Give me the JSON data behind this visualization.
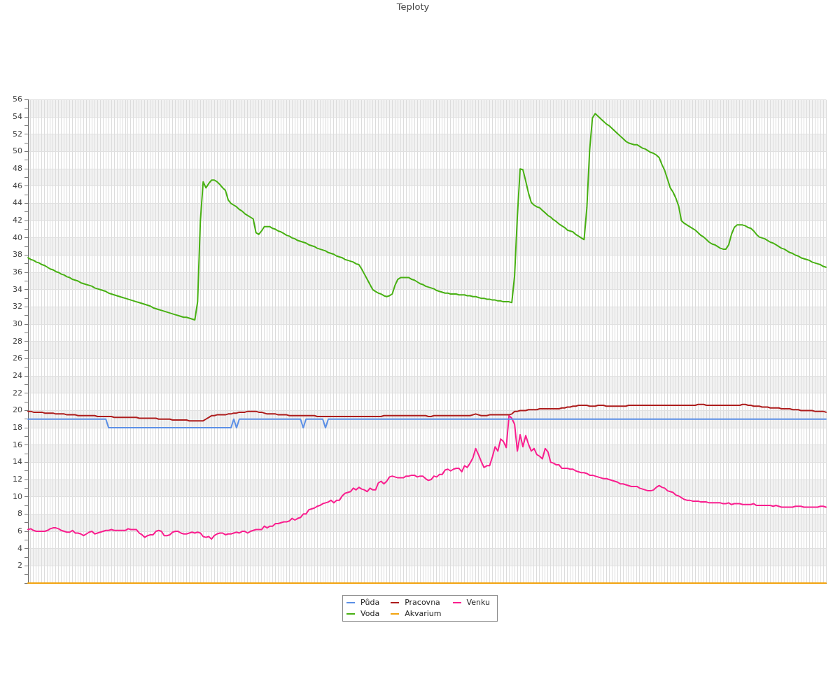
{
  "chart_data": {
    "type": "line",
    "title": "Teploty",
    "categories": [
      null,
      null,
      null,
      null,
      null,
      null,
      null,
      null,
      null,
      null,
      null,
      null,
      null,
      null,
      null,
      null,
      null,
      null,
      null,
      null,
      null,
      null,
      null,
      null,
      null,
      null,
      null,
      null,
      null,
      null,
      null,
      null,
      null,
      null,
      null,
      null,
      null,
      null,
      null,
      null,
      null,
      null,
      null,
      null,
      null,
      null,
      null,
      null,
      null,
      null,
      null,
      null,
      null,
      null,
      null,
      null,
      null,
      null,
      null,
      null,
      null,
      null,
      null,
      null,
      null,
      null,
      null,
      null,
      null,
      null,
      null,
      null,
      null,
      null,
      null,
      null,
      null,
      null,
      null,
      null,
      null,
      null,
      null,
      null,
      null,
      null,
      null,
      null,
      null,
      null,
      null,
      null,
      null,
      null,
      null,
      null,
      null,
      null,
      null,
      null,
      null,
      null,
      null,
      null,
      null,
      null,
      null,
      null,
      null,
      null,
      null,
      null,
      null,
      null,
      null,
      null,
      null,
      null,
      null,
      null,
      null,
      null,
      null,
      null,
      null,
      null,
      null,
      null,
      null,
      null,
      null,
      null,
      null,
      null,
      null,
      null,
      null,
      null,
      null,
      null,
      null,
      null,
      null,
      null,
      null,
      null,
      null,
      null,
      null,
      null,
      null,
      null,
      null,
      null,
      null,
      null,
      null,
      null,
      null,
      null,
      null,
      null,
      null,
      null,
      null,
      null,
      null,
      null,
      null,
      null,
      null,
      null,
      null,
      null,
      null,
      null,
      null,
      null,
      null,
      null,
      null,
      null,
      null,
      null,
      null,
      null,
      null,
      null,
      null,
      null,
      null,
      null,
      null,
      null,
      null,
      null,
      null,
      null,
      null,
      null,
      null,
      null,
      null,
      null,
      null,
      null,
      null,
      null,
      null,
      null,
      null,
      null,
      null,
      null,
      null,
      null,
      null,
      null,
      null,
      null,
      null,
      null,
      null,
      null,
      null,
      null,
      null,
      null,
      null,
      null,
      null,
      null,
      null,
      null,
      null,
      null,
      null,
      null,
      null,
      null,
      null,
      null,
      null,
      null,
      null,
      null,
      null,
      null,
      null,
      null,
      null,
      null,
      null,
      null,
      null,
      null,
      null,
      null,
      null,
      null,
      null,
      null,
      null,
      null,
      null,
      null,
      null,
      null,
      null,
      null,
      null,
      null,
      null,
      null,
      null,
      null,
      null,
      null,
      null,
      null,
      null,
      null,
      null,
      null,
      null,
      null,
      null,
      null
    ],
    "series": [
      {
        "name": "Půda",
        "color": "#5b8fe6",
        "values": [
          19,
          19,
          19,
          19,
          19,
          19,
          19,
          19,
          19,
          19,
          19,
          19,
          19,
          19,
          19,
          19,
          19,
          19,
          19,
          19,
          19,
          19,
          19,
          19,
          19,
          19,
          19,
          19,
          19,
          18,
          18,
          18,
          18,
          18,
          18,
          18,
          18,
          18,
          18,
          18,
          18,
          18,
          18,
          18,
          18,
          18,
          18,
          18,
          18,
          18,
          18,
          18,
          18,
          18,
          18,
          18,
          18,
          18,
          18,
          18,
          18,
          18,
          18,
          18,
          18,
          18,
          18,
          18,
          18,
          18,
          18,
          18,
          18,
          18,
          19,
          18,
          19,
          19,
          19,
          19,
          19,
          19,
          19,
          19,
          19,
          19,
          19,
          19,
          19,
          19,
          19,
          19,
          19,
          19,
          19,
          19,
          19,
          19,
          19,
          18,
          19,
          19,
          19,
          19,
          19,
          19,
          19,
          18,
          19,
          19,
          19,
          19,
          19,
          19,
          19,
          19,
          19,
          19,
          19,
          19,
          19,
          19,
          19,
          19,
          19,
          19,
          19,
          19,
          19,
          19,
          19,
          19,
          19,
          19,
          19,
          19,
          19,
          19,
          19,
          19,
          19,
          19,
          19,
          19,
          19,
          19,
          19,
          19,
          19,
          19,
          19,
          19,
          19,
          19,
          19,
          19,
          19,
          19,
          19,
          19,
          19,
          19,
          19,
          19,
          19,
          19,
          19,
          19,
          19,
          19,
          19,
          19,
          19,
          19,
          19,
          19,
          19,
          19,
          19,
          19,
          19,
          19,
          19,
          19,
          19,
          19,
          19,
          19,
          19,
          19,
          19,
          19,
          19,
          19,
          19,
          19,
          19,
          19,
          19,
          19,
          19,
          19,
          19,
          19,
          19,
          19,
          19,
          19,
          19,
          19,
          19,
          19,
          19,
          19,
          19,
          19,
          19,
          19,
          19,
          19,
          19,
          19,
          19,
          19,
          19,
          19,
          19,
          19,
          19,
          19,
          19,
          19,
          19,
          19,
          19,
          19,
          19,
          19,
          19,
          19,
          19,
          19,
          19,
          19,
          19,
          19,
          19,
          19,
          19,
          19,
          19,
          19,
          19,
          19,
          19,
          19,
          19,
          19,
          19,
          19,
          19,
          19,
          19,
          19,
          19,
          19,
          19,
          19,
          19,
          19,
          19,
          19,
          19,
          19,
          19,
          19,
          19,
          19,
          19,
          19,
          19,
          19,
          19,
          19,
          19,
          19,
          19,
          19
        ]
      },
      {
        "name": "Voda",
        "color": "#47b012",
        "values": [
          37.7,
          37.5,
          37.4,
          37.2,
          37.1,
          36.9,
          36.8,
          36.6,
          36.4,
          36.3,
          36.1,
          36.0,
          35.8,
          35.7,
          35.5,
          35.4,
          35.2,
          35.1,
          35.0,
          34.8,
          34.7,
          34.6,
          34.5,
          34.4,
          34.2,
          34.1,
          34.0,
          33.9,
          33.8,
          33.6,
          33.5,
          33.4,
          33.3,
          33.2,
          33.1,
          33.0,
          32.9,
          32.8,
          32.7,
          32.6,
          32.5,
          32.4,
          32.3,
          32.2,
          32.1,
          31.9,
          31.8,
          31.7,
          31.6,
          31.5,
          31.4,
          31.3,
          31.2,
          31.1,
          31.0,
          30.9,
          30.8,
          30.8,
          30.7,
          30.6,
          30.5,
          32.6,
          42.0,
          46.5,
          45.8,
          46.3,
          46.7,
          46.7,
          46.5,
          46.2,
          45.8,
          45.5,
          44.4,
          44.0,
          43.8,
          43.6,
          43.3,
          43.1,
          42.8,
          42.6,
          42.4,
          42.2,
          40.6,
          40.4,
          40.8,
          41.3,
          41.3,
          41.3,
          41.1,
          41.0,
          40.8,
          40.7,
          40.5,
          40.3,
          40.2,
          40.0,
          39.9,
          39.7,
          39.6,
          39.5,
          39.4,
          39.2,
          39.1,
          39.0,
          38.8,
          38.7,
          38.6,
          38.5,
          38.3,
          38.2,
          38.1,
          37.9,
          37.8,
          37.7,
          37.5,
          37.4,
          37.3,
          37.2,
          37.0,
          36.9,
          36.4,
          35.8,
          35.2,
          34.6,
          34.0,
          33.8,
          33.6,
          33.5,
          33.3,
          33.2,
          33.3,
          33.5,
          34.5,
          35.2,
          35.4,
          35.4,
          35.4,
          35.4,
          35.2,
          35.1,
          34.9,
          34.7,
          34.6,
          34.4,
          34.3,
          34.2,
          34.1,
          33.9,
          33.8,
          33.7,
          33.6,
          33.6,
          33.5,
          33.5,
          33.5,
          33.4,
          33.4,
          33.4,
          33.3,
          33.3,
          33.2,
          33.2,
          33.1,
          33.0,
          33.0,
          32.9,
          32.9,
          32.8,
          32.8,
          32.7,
          32.7,
          32.6,
          32.6,
          32.6,
          32.5,
          35.6,
          42.5,
          48.0,
          47.9,
          46.6,
          45.2,
          44.1,
          43.8,
          43.6,
          43.5,
          43.2,
          42.9,
          42.6,
          42.4,
          42.1,
          41.9,
          41.6,
          41.4,
          41.2,
          40.9,
          40.8,
          40.7,
          40.4,
          40.2,
          40.0,
          39.8,
          43.5,
          50.2,
          53.9,
          54.4,
          54.1,
          53.8,
          53.5,
          53.2,
          53.0,
          52.7,
          52.4,
          52.1,
          51.8,
          51.5,
          51.2,
          51.0,
          50.9,
          50.8,
          50.8,
          50.6,
          50.4,
          50.3,
          50.1,
          49.9,
          49.8,
          49.6,
          49.3,
          48.5,
          47.8,
          46.8,
          45.8,
          45.3,
          44.6,
          43.7,
          42.0,
          41.7,
          41.5,
          41.3,
          41.1,
          40.9,
          40.6,
          40.3,
          40.1,
          39.8,
          39.5,
          39.3,
          39.2,
          39.0,
          38.8,
          38.7,
          38.7,
          39.2,
          40.4,
          41.2,
          41.5,
          41.5,
          41.5,
          41.4,
          41.2,
          41.1,
          40.8,
          40.4,
          40.1,
          40.0,
          39.9,
          39.7,
          39.5,
          39.4,
          39.2,
          39.0,
          38.8,
          38.7,
          38.5,
          38.3,
          38.2,
          38.0,
          37.9,
          37.7,
          37.6,
          37.5,
          37.4,
          37.2,
          37.1,
          37.0,
          36.9,
          36.7,
          36.6
        ]
      },
      {
        "name": "Pracovna",
        "color": "#ad1c1c",
        "values": [
          19.9,
          19.9,
          19.8,
          19.8,
          19.8,
          19.8,
          19.7,
          19.7,
          19.7,
          19.7,
          19.6,
          19.6,
          19.6,
          19.6,
          19.5,
          19.5,
          19.5,
          19.5,
          19.4,
          19.4,
          19.4,
          19.4,
          19.4,
          19.4,
          19.4,
          19.3,
          19.3,
          19.3,
          19.3,
          19.3,
          19.3,
          19.2,
          19.2,
          19.2,
          19.2,
          19.2,
          19.2,
          19.2,
          19.2,
          19.2,
          19.1,
          19.1,
          19.1,
          19.1,
          19.1,
          19.1,
          19.1,
          19.0,
          19.0,
          19.0,
          19.0,
          19.0,
          18.9,
          18.9,
          18.9,
          18.9,
          18.9,
          18.9,
          18.8,
          18.8,
          18.8,
          18.8,
          18.8,
          18.8,
          19.0,
          19.2,
          19.4,
          19.4,
          19.5,
          19.5,
          19.5,
          19.5,
          19.6,
          19.6,
          19.7,
          19.7,
          19.8,
          19.8,
          19.8,
          19.9,
          19.9,
          19.9,
          19.9,
          19.8,
          19.8,
          19.7,
          19.6,
          19.6,
          19.6,
          19.6,
          19.5,
          19.5,
          19.5,
          19.5,
          19.4,
          19.4,
          19.4,
          19.4,
          19.4,
          19.4,
          19.4,
          19.4,
          19.4,
          19.4,
          19.3,
          19.3,
          19.3,
          19.3,
          19.3,
          19.3,
          19.3,
          19.3,
          19.3,
          19.3,
          19.3,
          19.3,
          19.3,
          19.3,
          19.3,
          19.3,
          19.3,
          19.3,
          19.3,
          19.3,
          19.3,
          19.3,
          19.3,
          19.3,
          19.4,
          19.4,
          19.4,
          19.4,
          19.4,
          19.4,
          19.4,
          19.4,
          19.4,
          19.4,
          19.4,
          19.4,
          19.4,
          19.4,
          19.4,
          19.4,
          19.3,
          19.3,
          19.4,
          19.4,
          19.4,
          19.4,
          19.4,
          19.4,
          19.4,
          19.4,
          19.4,
          19.4,
          19.4,
          19.4,
          19.4,
          19.4,
          19.5,
          19.6,
          19.5,
          19.4,
          19.4,
          19.4,
          19.5,
          19.5,
          19.5,
          19.5,
          19.5,
          19.5,
          19.5,
          19.5,
          19.6,
          19.9,
          19.9,
          20.0,
          20.0,
          20.0,
          20.1,
          20.1,
          20.1,
          20.1,
          20.2,
          20.2,
          20.2,
          20.2,
          20.2,
          20.2,
          20.2,
          20.2,
          20.3,
          20.3,
          20.4,
          20.4,
          20.5,
          20.5,
          20.6,
          20.6,
          20.6,
          20.6,
          20.5,
          20.5,
          20.5,
          20.6,
          20.6,
          20.6,
          20.5,
          20.5,
          20.5,
          20.5,
          20.5,
          20.5,
          20.5,
          20.5,
          20.6,
          20.6,
          20.6,
          20.6,
          20.6,
          20.6,
          20.6,
          20.6,
          20.6,
          20.6,
          20.6,
          20.6,
          20.6,
          20.6,
          20.6,
          20.6,
          20.6,
          20.6,
          20.6,
          20.6,
          20.6,
          20.6,
          20.6,
          20.6,
          20.6,
          20.7,
          20.7,
          20.7,
          20.6,
          20.6,
          20.6,
          20.6,
          20.6,
          20.6,
          20.6,
          20.6,
          20.6,
          20.6,
          20.6,
          20.6,
          20.6,
          20.7,
          20.7,
          20.6,
          20.6,
          20.5,
          20.5,
          20.5,
          20.4,
          20.4,
          20.4,
          20.3,
          20.3,
          20.3,
          20.3,
          20.2,
          20.2,
          20.2,
          20.2,
          20.1,
          20.1,
          20.1,
          20.0,
          20.0,
          20.0,
          20.0,
          20.0,
          19.9,
          19.9,
          19.9,
          19.9,
          19.8
        ]
      },
      {
        "name": "Akvarium",
        "color": "#f2a30f",
        "values": [
          0,
          0,
          0,
          0,
          0,
          0,
          0,
          0,
          0,
          0,
          0,
          0,
          0,
          0,
          0,
          0,
          0,
          0,
          0,
          0,
          0,
          0,
          0,
          0,
          0,
          0,
          0,
          0,
          0,
          0,
          0,
          0,
          0,
          0,
          0,
          0,
          0,
          0,
          0,
          0,
          0,
          0,
          0,
          0,
          0,
          0,
          0,
          0,
          0,
          0,
          0,
          0,
          0,
          0,
          0,
          0,
          0,
          0,
          0,
          0,
          0,
          0,
          0,
          0,
          0,
          0,
          0,
          0,
          0,
          0,
          0,
          0,
          0,
          0,
          0,
          0,
          0,
          0,
          0,
          0,
          0,
          0,
          0,
          0,
          0,
          0,
          0,
          0,
          0,
          0,
          0,
          0,
          0,
          0,
          0,
          0,
          0,
          0,
          0,
          0,
          0,
          0,
          0,
          0,
          0,
          0,
          0,
          0,
          0,
          0,
          0,
          0,
          0,
          0,
          0,
          0,
          0,
          0,
          0,
          0,
          0,
          0,
          0,
          0,
          0,
          0,
          0,
          0,
          0,
          0,
          0,
          0,
          0,
          0,
          0,
          0,
          0,
          0,
          0,
          0,
          0,
          0,
          0,
          0,
          0,
          0,
          0,
          0,
          0,
          0,
          0,
          0,
          0,
          0,
          0,
          0,
          0,
          0,
          0,
          0,
          0,
          0,
          0,
          0,
          0,
          0,
          0,
          0,
          0,
          0,
          0,
          0,
          0,
          0,
          0,
          0,
          0,
          0,
          0,
          0,
          0,
          0,
          0,
          0,
          0,
          0,
          0,
          0,
          0,
          0,
          0,
          0,
          0,
          0,
          0,
          0,
          0,
          0,
          0,
          0,
          0,
          0,
          0,
          0,
          0,
          0,
          0,
          0,
          0,
          0,
          0,
          0,
          0,
          0,
          0,
          0,
          0,
          0,
          0,
          0,
          0,
          0,
          0,
          0,
          0,
          0,
          0,
          0,
          0,
          0,
          0,
          0,
          0,
          0,
          0,
          0,
          0,
          0,
          0,
          0,
          0,
          0,
          0,
          0,
          0,
          0,
          0,
          0,
          0,
          0,
          0,
          0,
          0,
          0,
          0,
          0,
          0,
          0,
          0,
          0,
          0,
          0,
          0,
          0,
          0,
          0,
          0,
          0,
          0,
          0,
          0,
          0,
          0,
          0,
          0,
          0,
          0,
          0,
          0,
          0,
          0,
          0,
          0,
          0,
          0,
          0,
          0,
          0
        ]
      },
      {
        "name": "Venku",
        "color": "#f91e8e",
        "values": [
          6.2,
          6.3,
          6.1,
          6.0,
          6.0,
          6.0,
          6.0,
          6.1,
          6.3,
          6.4,
          6.4,
          6.3,
          6.1,
          6.0,
          5.9,
          5.9,
          6.1,
          5.8,
          5.8,
          5.7,
          5.5,
          5.7,
          5.9,
          6.0,
          5.7,
          5.8,
          5.9,
          6.0,
          6.1,
          6.1,
          6.2,
          6.1,
          6.1,
          6.1,
          6.1,
          6.1,
          6.3,
          6.2,
          6.2,
          6.2,
          5.8,
          5.6,
          5.3,
          5.5,
          5.6,
          5.6,
          6.0,
          6.1,
          6.0,
          5.5,
          5.5,
          5.6,
          5.9,
          6.0,
          6.0,
          5.8,
          5.7,
          5.7,
          5.8,
          5.9,
          5.8,
          5.9,
          5.8,
          5.4,
          5.3,
          5.4,
          5.1,
          5.5,
          5.7,
          5.8,
          5.8,
          5.6,
          5.7,
          5.7,
          5.8,
          5.9,
          5.8,
          6.0,
          6.0,
          5.8,
          6.0,
          6.1,
          6.2,
          6.2,
          6.2,
          6.6,
          6.4,
          6.6,
          6.6,
          6.9,
          6.9,
          7.0,
          7.1,
          7.1,
          7.2,
          7.5,
          7.3,
          7.5,
          7.6,
          8.0,
          8.0,
          8.5,
          8.6,
          8.7,
          8.9,
          9.0,
          9.2,
          9.3,
          9.4,
          9.6,
          9.3,
          9.6,
          9.6,
          10.1,
          10.4,
          10.5,
          10.6,
          11.0,
          10.8,
          11.1,
          10.9,
          10.8,
          10.6,
          11.0,
          10.8,
          10.8,
          11.6,
          11.8,
          11.5,
          11.8,
          12.3,
          12.4,
          12.3,
          12.2,
          12.2,
          12.2,
          12.4,
          12.4,
          12.5,
          12.5,
          12.3,
          12.4,
          12.4,
          12.1,
          11.9,
          12.0,
          12.4,
          12.3,
          12.6,
          12.6,
          13.1,
          13.2,
          13.0,
          13.2,
          13.3,
          13.3,
          12.9,
          13.6,
          13.4,
          13.9,
          14.5,
          15.6,
          14.9,
          14.1,
          13.4,
          13.6,
          13.6,
          14.6,
          15.8,
          15.3,
          16.7,
          16.4,
          15.7,
          19.4,
          19.1,
          18.4,
          15.3,
          17.2,
          15.8,
          17.1,
          16.1,
          15.3,
          15.6,
          14.9,
          14.7,
          14.4,
          15.6,
          15.2,
          14.0,
          13.9,
          13.7,
          13.7,
          13.3,
          13.3,
          13.3,
          13.2,
          13.2,
          13.0,
          12.9,
          12.8,
          12.8,
          12.7,
          12.5,
          12.5,
          12.4,
          12.3,
          12.2,
          12.1,
          12.1,
          12.0,
          11.9,
          11.8,
          11.7,
          11.5,
          11.5,
          11.4,
          11.3,
          11.2,
          11.2,
          11.2,
          11.0,
          10.9,
          10.8,
          10.7,
          10.7,
          10.8,
          11.1,
          11.3,
          11.1,
          11.0,
          10.7,
          10.6,
          10.5,
          10.2,
          10.1,
          9.9,
          9.7,
          9.6,
          9.6,
          9.5,
          9.5,
          9.5,
          9.4,
          9.4,
          9.4,
          9.3,
          9.3,
          9.3,
          9.3,
          9.3,
          9.2,
          9.2,
          9.3,
          9.1,
          9.2,
          9.2,
          9.2,
          9.1,
          9.1,
          9.1,
          9.1,
          9.2,
          9.0,
          9.0,
          9.0,
          9.0,
          9.0,
          9.0,
          8.9,
          9.0,
          8.9,
          8.8,
          8.8,
          8.8,
          8.8,
          8.8,
          8.9,
          8.9,
          8.9,
          8.8,
          8.8,
          8.8,
          8.8,
          8.8,
          8.8,
          8.9,
          8.9,
          8.8
        ]
      }
    ],
    "ylim": [
      0,
      56
    ],
    "yticks": [
      {
        "value": 0,
        "label": null
      },
      {
        "value": 1,
        "label": null
      },
      2,
      {
        "value": 3,
        "label": null
      },
      4,
      {
        "value": 5,
        "label": null
      },
      6,
      {
        "value": 7,
        "label": null
      },
      8,
      {
        "value": 9,
        "label": null
      },
      10,
      {
        "value": 11,
        "label": null
      },
      12,
      {
        "value": 13,
        "label": null
      },
      14,
      {
        "value": 15,
        "label": null
      },
      16,
      {
        "value": 17,
        "label": null
      },
      18,
      {
        "value": 19,
        "label": null
      },
      20,
      {
        "value": 21,
        "label": null
      },
      22,
      {
        "value": 23,
        "label": null
      },
      24,
      {
        "value": 25,
        "label": null
      },
      26,
      {
        "value": 27,
        "label": null
      },
      28,
      {
        "value": 29,
        "label": null
      },
      30,
      {
        "value": 31,
        "label": null
      },
      32,
      {
        "value": 33,
        "label": null
      },
      34,
      {
        "value": 35,
        "label": null
      },
      36,
      {
        "value": 37,
        "label": null
      },
      38,
      {
        "value": 39,
        "label": null
      },
      40,
      {
        "value": 41,
        "label": null
      },
      42,
      {
        "value": 43,
        "label": null
      },
      44,
      {
        "value": 45,
        "label": null
      },
      46,
      {
        "value": 47,
        "label": null
      },
      48,
      {
        "value": 49,
        "label": null
      },
      50,
      {
        "value": 51,
        "label": null
      },
      52,
      {
        "value": 53,
        "label": null
      },
      54,
      {
        "value": 55,
        "label": null
      },
      56
    ],
    "grid": true,
    "legend": "bottom",
    "tick_labels": "y",
    "marker": "none",
    "line_style": "solid"
  }
}
